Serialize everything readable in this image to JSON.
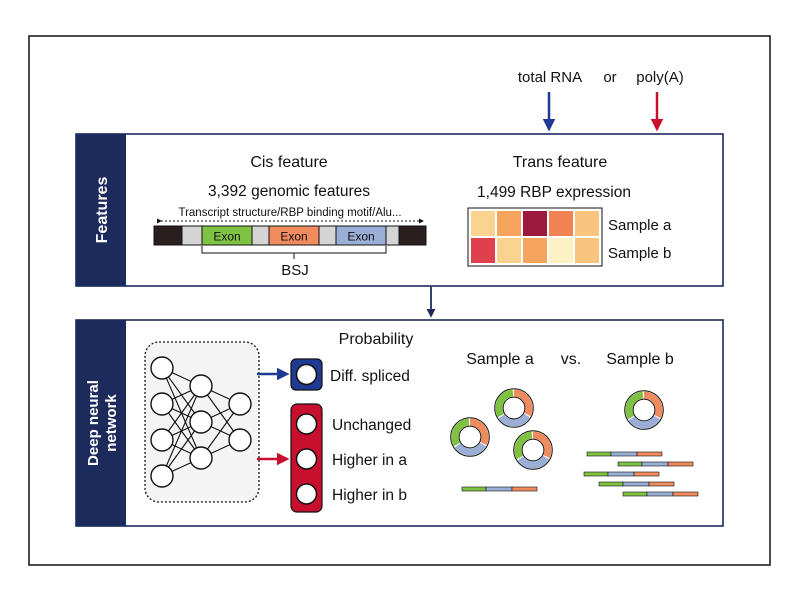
{
  "inputs": {
    "total_rna": "total RNA",
    "or": "or",
    "polya": "poly(A)",
    "total_rna_color": "#1F3A93",
    "polya_color": "#C8102E"
  },
  "features_panel": {
    "side_label": "Features",
    "cis": {
      "title": "Cis feature",
      "count_label": "3,392 genomic features",
      "scope_label": "Transcript structure/RBP binding motif/Alu...",
      "exons": [
        {
          "label": "Exon",
          "color": "#7FC242"
        },
        {
          "label": "Exon",
          "color": "#F08B5E"
        },
        {
          "label": "Exon",
          "color": "#9AAED6"
        }
      ],
      "bsj_label": "BSJ"
    },
    "trans": {
      "title": "Trans feature",
      "count_label": "1,499 RBP expression",
      "heatmap_rows": [
        {
          "label": "Sample a",
          "colors": [
            "#FBD391",
            "#F6A45D",
            "#9C1A40",
            "#F18253",
            "#F9C47E"
          ]
        },
        {
          "label": "Sample b",
          "colors": [
            "#E0404D",
            "#FBD391",
            "#F6A45D",
            "#FDF2C4",
            "#F9C47E"
          ]
        }
      ]
    }
  },
  "dnn_panel": {
    "side_label_line1": "Deep neural",
    "side_label_line2": "network",
    "probability_label": "Probability",
    "diff_spliced_label": "Diff. spliced",
    "outputs": [
      "Unchanged",
      "Higher in a",
      "Higher in b"
    ],
    "comparison": {
      "sample_a": "Sample a",
      "vs": "vs.",
      "sample_b": "Sample b"
    }
  },
  "colors": {
    "navy": "#1C2A5C",
    "arrow_blue": "#1F3A93",
    "arrow_red": "#C8102E",
    "output_red": "#C8102E",
    "green": "#7FC242",
    "orange": "#F08B5E",
    "blue": "#9AAED6"
  }
}
